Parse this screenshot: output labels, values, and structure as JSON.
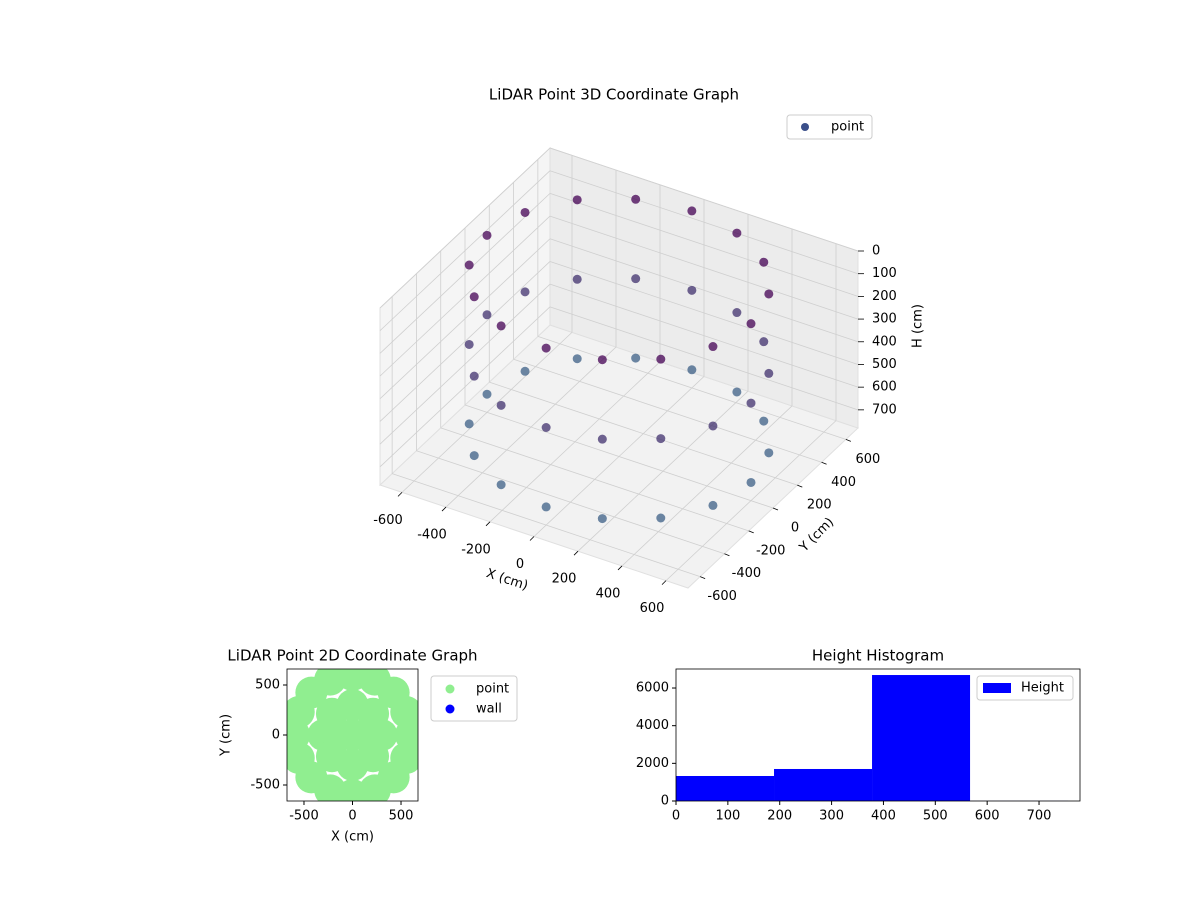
{
  "chart_data": [
    {
      "type": "scatter3d",
      "title": "LiDAR Point 3D Coordinate Graph",
      "xlabel": "X (cm)",
      "ylabel": "Y (cm)",
      "zlabel": "H (cm)",
      "xlim": [
        -700,
        700
      ],
      "ylim": [
        -700,
        700
      ],
      "zlim": [
        0,
        780
      ],
      "xticks": [
        -600,
        -400,
        -200,
        0,
        200,
        400,
        600
      ],
      "yticks": [
        -600,
        -400,
        -200,
        0,
        200,
        400,
        600
      ],
      "zticks": [
        0,
        100,
        200,
        300,
        400,
        500,
        600,
        700
      ],
      "z_inverted": true,
      "legend": "upper right",
      "colormap": [
        "#440154",
        "#3b6a8c"
      ],
      "series": [
        {
          "name": "point",
          "color": "#3b4f8a",
          "x": [
            600,
            554,
            424,
            230,
            0,
            -230,
            -424,
            -554,
            -600,
            -554,
            -424,
            -230,
            0,
            230,
            424,
            554,
            600,
            554,
            424,
            230,
            0,
            -230,
            -424,
            -554,
            -600,
            -554,
            -424,
            -230,
            0,
            230,
            424,
            554,
            600,
            554,
            424,
            230,
            0,
            -230,
            -424,
            -554,
            -600,
            -554,
            -424,
            -230,
            0,
            230,
            424,
            554
          ],
          "y": [
            0,
            230,
            424,
            554,
            600,
            554,
            424,
            230,
            0,
            -230,
            -424,
            -554,
            -600,
            -554,
            -424,
            -230,
            0,
            230,
            424,
            554,
            600,
            554,
            424,
            230,
            0,
            -230,
            -424,
            -554,
            -600,
            -554,
            -424,
            -230,
            0,
            230,
            424,
            554,
            600,
            554,
            424,
            230,
            0,
            -230,
            -424,
            -554,
            -600,
            -554,
            -424,
            -230
          ],
          "z": [
            0,
            0,
            0,
            0,
            0,
            0,
            0,
            0,
            0,
            0,
            0,
            0,
            0,
            0,
            0,
            0,
            350,
            350,
            350,
            350,
            350,
            350,
            350,
            350,
            350,
            350,
            350,
            350,
            350,
            350,
            350,
            350,
            700,
            700,
            700,
            700,
            700,
            700,
            700,
            700,
            700,
            700,
            700,
            700,
            700,
            700,
            700,
            700
          ]
        }
      ]
    },
    {
      "type": "scatter",
      "title": "LiDAR Point 2D Coordinate Graph",
      "xlabel": "X (cm)",
      "ylabel": "Y (cm)",
      "xlim": [
        -675,
        675
      ],
      "ylim": [
        -660,
        660
      ],
      "xticks": [
        -500,
        0,
        500
      ],
      "yticks": [
        -500,
        0,
        500
      ],
      "legend": "outside right",
      "series": [
        {
          "name": "point",
          "color": "#90ee90",
          "x": [
            600,
            554,
            424,
            230,
            0,
            -230,
            -424,
            -554,
            -600,
            -554,
            -424,
            -230,
            0,
            230,
            424,
            554,
            300,
            212,
            0,
            -212,
            -300,
            -212,
            0,
            212,
            0
          ],
          "y": [
            0,
            230,
            424,
            554,
            600,
            554,
            424,
            230,
            0,
            -230,
            -424,
            -554,
            -600,
            -554,
            -424,
            -230,
            0,
            212,
            300,
            212,
            0,
            -212,
            -300,
            -212,
            0
          ]
        },
        {
          "name": "wall",
          "color": "#0000ff",
          "x": [],
          "y": []
        }
      ]
    },
    {
      "type": "histogram",
      "title": "Height Histogram",
      "bins": [
        0,
        189,
        378,
        567,
        756
      ],
      "xlim": [
        0,
        779
      ],
      "ylim": [
        0,
        7010
      ],
      "xticks": [
        0,
        100,
        200,
        300,
        400,
        500,
        600,
        700
      ],
      "yticks": [
        0,
        2000,
        4000,
        6000
      ],
      "legend": "upper right",
      "series": [
        {
          "name": "Height",
          "color": "#0000ff",
          "values": [
            1328,
            1700,
            6690,
            5
          ]
        }
      ]
    }
  ]
}
